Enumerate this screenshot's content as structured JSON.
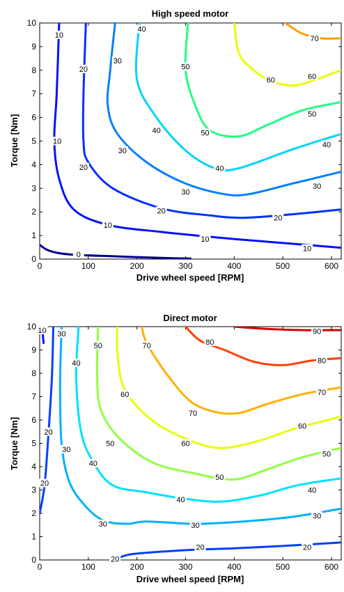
{
  "chart_data": [
    {
      "type": "contour",
      "title": "High speed motor",
      "xlabel": "Drive wheel speed [RPM]",
      "ylabel": "Torque [Nm]",
      "xlim": [
        0,
        620
      ],
      "ylim": [
        0,
        10
      ],
      "xticks": [
        "0",
        "100",
        "200",
        "300",
        "400",
        "500",
        "600"
      ],
      "yticks": [
        "0",
        "1",
        "2",
        "3",
        "4",
        "5",
        "6",
        "7",
        "8",
        "9",
        "10"
      ],
      "grid": false,
      "contours": [
        {
          "level": "0",
          "color": "#00008f",
          "points": [
            [
              0,
              0.6
            ],
            [
              20,
              0.35
            ],
            [
              60,
              0.2
            ],
            [
              150,
              0.12
            ],
            [
              250,
              0.05
            ],
            [
              310,
              0.02
            ]
          ],
          "labels": [
            [
              80,
              0.2
            ]
          ]
        },
        {
          "level": "10",
          "color": "#0010ff",
          "points": [
            [
              40,
              10
            ],
            [
              35,
              7
            ],
            [
              30,
              5
            ],
            [
              40,
              3.4
            ],
            [
              70,
              2.1
            ],
            [
              140,
              1.45
            ],
            [
              250,
              1.15
            ],
            [
              400,
              0.85
            ],
            [
              520,
              0.65
            ],
            [
              620,
              0.48
            ]
          ],
          "labels": [
            [
              40,
              9.5
            ],
            [
              36,
              5.0
            ],
            [
              140,
              1.45
            ],
            [
              340,
              0.85
            ],
            [
              550,
              0.45
            ]
          ]
        },
        {
          "level": "20",
          "color": "#0030ff",
          "points": [
            [
              95,
              10
            ],
            [
              90,
              7
            ],
            [
              90,
              5
            ],
            [
              100,
              4.1
            ],
            [
              150,
              3.0
            ],
            [
              250,
              2.15
            ],
            [
              350,
              1.85
            ],
            [
              420,
              1.75
            ],
            [
              520,
              1.9
            ],
            [
              620,
              2.1
            ]
          ],
          "labels": [
            [
              90,
              8.05
            ],
            [
              90,
              3.9
            ],
            [
              250,
              2.05
            ],
            [
              490,
              1.75
            ]
          ]
        },
        {
          "level": "30",
          "color": "#0080ff",
          "points": [
            [
              155,
              10
            ],
            [
              145,
              8
            ],
            [
              140,
              6.5
            ],
            [
              160,
              5.3
            ],
            [
              220,
              4.1
            ],
            [
              300,
              3.2
            ],
            [
              380,
              2.75
            ],
            [
              430,
              2.75
            ],
            [
              520,
              3.2
            ],
            [
              620,
              3.7
            ]
          ],
          "labels": [
            [
              160,
              8.4
            ],
            [
              170,
              4.6
            ],
            [
              300,
              2.85
            ],
            [
              570,
              3.1
            ]
          ]
        },
        {
          "level": "40",
          "color": "#00d4ff",
          "points": [
            [
              205,
              10
            ],
            [
              200,
              7.6
            ],
            [
              240,
              6.0
            ],
            [
              300,
              4.6
            ],
            [
              360,
              3.85
            ],
            [
              410,
              3.85
            ],
            [
              520,
              4.65
            ],
            [
              620,
              5.3
            ]
          ],
          "labels": [
            [
              210,
              9.75
            ],
            [
              240,
              5.45
            ],
            [
              370,
              3.85
            ],
            [
              590,
              4.85
            ]
          ]
        },
        {
          "level": "50",
          "color": "#20ff80",
          "points": [
            [
              305,
              10
            ],
            [
              300,
              8
            ],
            [
              320,
              6.5
            ],
            [
              350,
              5.45
            ],
            [
              410,
              5.2
            ],
            [
              470,
              5.7
            ],
            [
              540,
              6.3
            ],
            [
              620,
              6.65
            ]
          ],
          "labels": [
            [
              300,
              8.15
            ],
            [
              340,
              5.35
            ],
            [
              560,
              6.15
            ]
          ]
        },
        {
          "level": "60",
          "color": "#e8ff00",
          "points": [
            [
              400,
              10
            ],
            [
              410,
              8.7
            ],
            [
              440,
              8.0
            ],
            [
              475,
              7.55
            ],
            [
              520,
              7.35
            ],
            [
              560,
              7.55
            ],
            [
              620,
              8.0
            ]
          ],
          "labels": [
            [
              475,
              7.6
            ],
            [
              560,
              7.75
            ]
          ]
        },
        {
          "level": "70",
          "color": "#ff9f00",
          "points": [
            [
              505,
              10
            ],
            [
              540,
              9.55
            ],
            [
              580,
              9.35
            ],
            [
              620,
              9.35
            ]
          ],
          "labels": [
            [
              565,
              9.35
            ]
          ]
        }
      ]
    },
    {
      "type": "contour",
      "title": "Direct motor",
      "xlabel": "Drive wheel speed [RPM]",
      "ylabel": "Torque [Nm]",
      "xlim": [
        0,
        620
      ],
      "ylim": [
        0,
        10
      ],
      "xticks": [
        "0",
        "100",
        "200",
        "300",
        "400",
        "500",
        "600"
      ],
      "yticks": [
        "0",
        "1",
        "2",
        "3",
        "4",
        "5",
        "6",
        "7",
        "8",
        "9",
        "10"
      ],
      "grid": false,
      "contours": [
        {
          "level": "10",
          "color": "#0010ff",
          "points": [
            [
              5,
              10
            ],
            [
              8,
              9.3
            ]
          ],
          "labels": [
            [
              5,
              9.85
            ]
          ]
        },
        {
          "level": "20",
          "color": "#0040ff",
          "points": [
            [
              0,
              2
            ],
            [
              10,
              3.2
            ],
            [
              18,
              5.4
            ],
            [
              25,
              7.8
            ],
            [
              28,
              10
            ]
          ],
          "labels": [
            [
              18,
              5.5
            ],
            [
              10,
              3.3
            ],
            [
              155,
              0.05
            ],
            [
              330,
              0.55
            ],
            [
              550,
              0.55
            ]
          ]
        },
        {
          "level": "20b",
          "color": "#0040ff",
          "points": [
            [
              155,
              0
            ],
            [
              190,
              0.25
            ],
            [
              300,
              0.42
            ],
            [
              400,
              0.5
            ],
            [
              500,
              0.6
            ],
            [
              620,
              0.75
            ]
          ],
          "labels": []
        },
        {
          "level": "30",
          "color": "#00b0ff",
          "points": [
            [
              45,
              10
            ],
            [
              42,
              7.5
            ],
            [
              45,
              5.0
            ],
            [
              60,
              3.4
            ],
            [
              90,
              2.4
            ],
            [
              130,
              1.7
            ],
            [
              180,
              1.55
            ],
            [
              220,
              1.65
            ],
            [
              320,
              1.55
            ],
            [
              420,
              1.65
            ],
            [
              520,
              1.85
            ],
            [
              620,
              2.2
            ]
          ],
          "labels": [
            [
              45,
              9.7
            ],
            [
              55,
              4.75
            ],
            [
              130,
              1.55
            ],
            [
              320,
              1.5
            ],
            [
              570,
              1.9
            ]
          ]
        },
        {
          "level": "40",
          "color": "#00e0ff",
          "points": [
            [
              80,
              10
            ],
            [
              75,
              7.8
            ],
            [
              85,
              5.5
            ],
            [
              110,
              4.2
            ],
            [
              150,
              3.2
            ],
            [
              220,
              2.9
            ],
            [
              290,
              2.65
            ],
            [
              370,
              2.5
            ],
            [
              450,
              2.75
            ],
            [
              530,
              3.2
            ],
            [
              620,
              3.5
            ]
          ],
          "labels": [
            [
              75,
              8.45
            ],
            [
              110,
              4.15
            ],
            [
              290,
              2.6
            ],
            [
              560,
              3.0
            ]
          ]
        },
        {
          "level": "50",
          "color": "#90ff40",
          "points": [
            [
              120,
              10
            ],
            [
              118,
              8
            ],
            [
              125,
              6.5
            ],
            [
              160,
              5.3
            ],
            [
              230,
              4.2
            ],
            [
              320,
              3.7
            ],
            [
              400,
              3.45
            ],
            [
              470,
              3.9
            ],
            [
              540,
              4.4
            ],
            [
              620,
              4.8
            ]
          ],
          "labels": [
            [
              120,
              9.2
            ],
            [
              145,
              5.0
            ],
            [
              370,
              3.55
            ],
            [
              590,
              4.55
            ]
          ]
        },
        {
          "level": "60",
          "color": "#e8ff00",
          "points": [
            [
              160,
              10
            ],
            [
              160,
              8.8
            ],
            [
              175,
              7.3
            ],
            [
              230,
              6.0
            ],
            [
              300,
              5.2
            ],
            [
              370,
              4.8
            ],
            [
              450,
              5.1
            ],
            [
              520,
              5.6
            ],
            [
              620,
              6.15
            ]
          ],
          "labels": [
            [
              175,
              7.1
            ],
            [
              300,
              5.0
            ],
            [
              540,
              5.75
            ]
          ]
        },
        {
          "level": "70",
          "color": "#ffb000",
          "points": [
            [
              210,
              10
            ],
            [
              220,
              9.3
            ],
            [
              260,
              8.0
            ],
            [
              310,
              6.8
            ],
            [
              360,
              6.35
            ],
            [
              410,
              6.3
            ],
            [
              470,
              6.7
            ],
            [
              540,
              7.1
            ],
            [
              620,
              7.4
            ]
          ],
          "labels": [
            [
              220,
              9.2
            ],
            [
              315,
              6.3
            ],
            [
              580,
              7.2
            ]
          ]
        },
        {
          "level": "80",
          "color": "#ff4000",
          "points": [
            [
              300,
              10
            ],
            [
              330,
              9.4
            ],
            [
              380,
              9.0
            ],
            [
              440,
              8.5
            ],
            [
              500,
              8.35
            ],
            [
              560,
              8.55
            ],
            [
              620,
              8.65
            ]
          ],
          "labels": [
            [
              350,
              9.35
            ],
            [
              580,
              8.55
            ]
          ]
        },
        {
          "level": "90",
          "color": "#d00000",
          "points": [
            [
              400,
              10
            ],
            [
              470,
              9.9
            ],
            [
              540,
              9.85
            ],
            [
              620,
              9.85
            ]
          ],
          "labels": [
            [
              570,
              9.8
            ]
          ]
        }
      ]
    }
  ]
}
